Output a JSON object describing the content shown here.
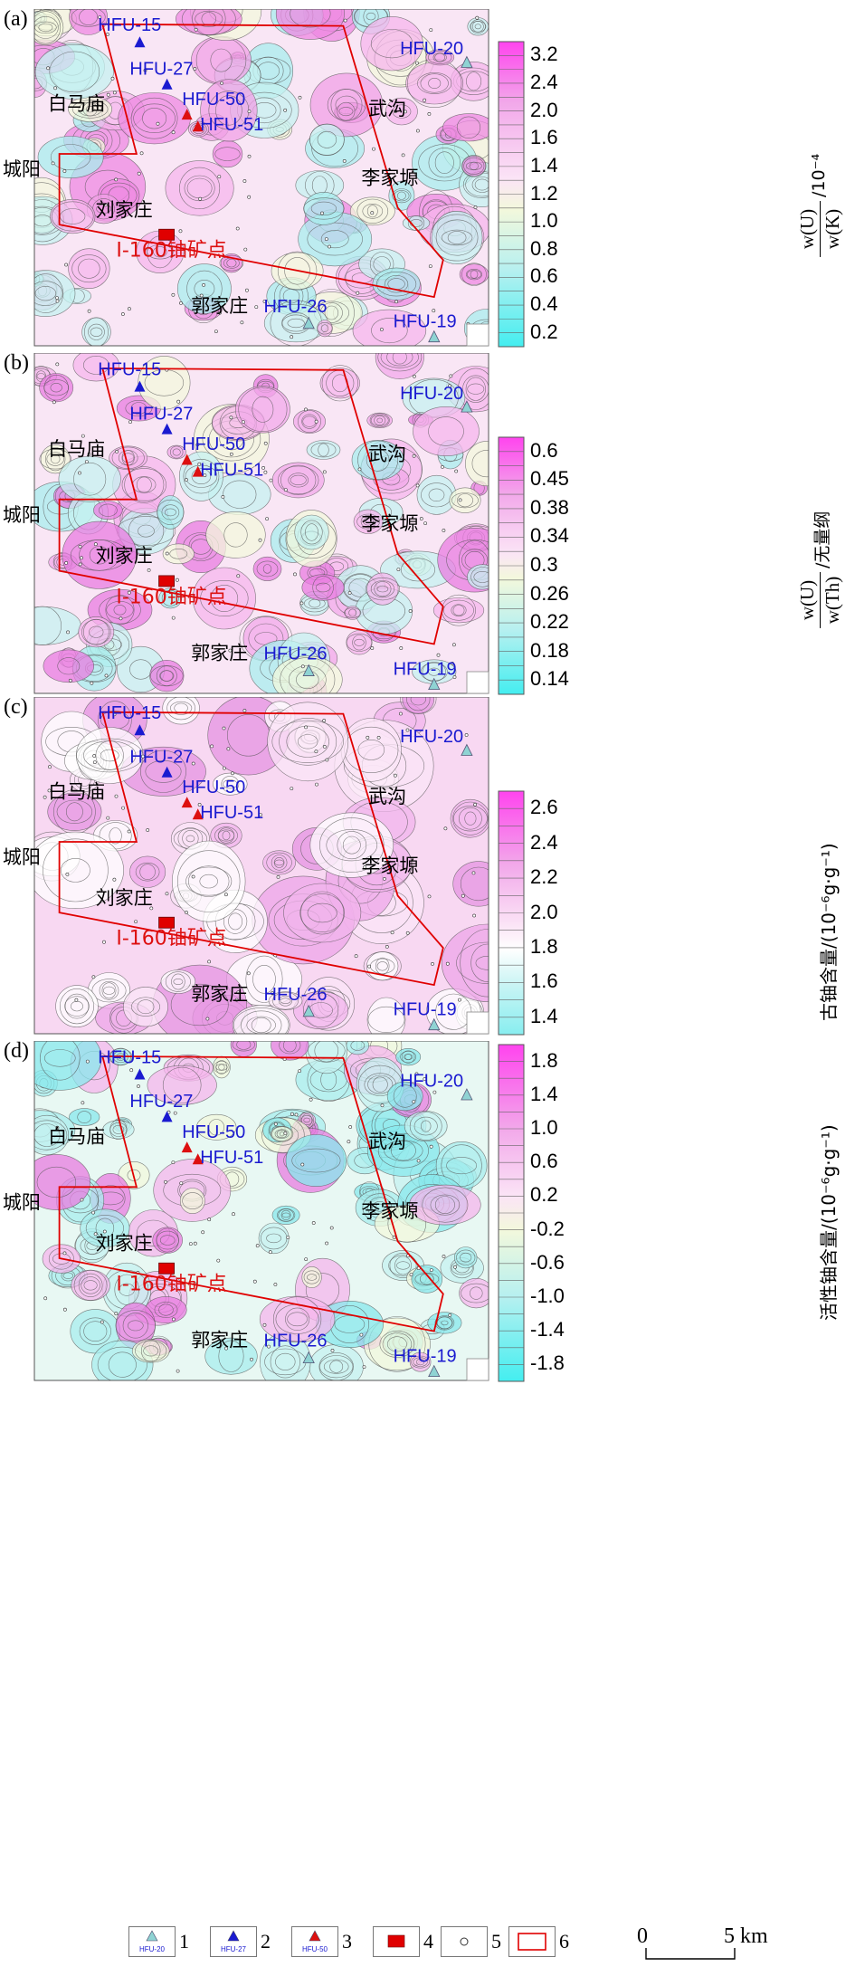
{
  "panels": [
    {
      "id": "a",
      "label": "(a)",
      "colorbar": {
        "ticks": [
          "3.2",
          "2.4",
          "2.0",
          "1.6",
          "1.4",
          "1.2",
          "1.0",
          "0.8",
          "0.6",
          "0.4",
          "0.2"
        ],
        "title_type": "fraction",
        "numerator": "w(U)",
        "denominator": "w(K)",
        "suffix": "/10⁻⁴"
      }
    },
    {
      "id": "b",
      "label": "(b)",
      "colorbar": {
        "ticks": [
          "0.6",
          "0.45",
          "0.38",
          "0.34",
          "0.3",
          "0.26",
          "0.22",
          "0.18",
          "0.14"
        ],
        "title_type": "fraction",
        "numerator": "w(U)",
        "denominator": "w(Th)",
        "suffix": "/无量纲"
      }
    },
    {
      "id": "c",
      "label": "(c)",
      "colorbar": {
        "ticks": [
          "2.6",
          "2.4",
          "2.2",
          "2.0",
          "1.8",
          "1.6",
          "1.4"
        ],
        "title_type": "text",
        "title": "古铀含量/(10⁻⁶g·g⁻¹)"
      }
    },
    {
      "id": "d",
      "label": "(d)",
      "colorbar": {
        "ticks": [
          "1.8",
          "1.4",
          "1.0",
          "0.6",
          "0.2",
          "-0.2",
          "-0.6",
          "-1.0",
          "-1.4",
          "-1.8"
        ],
        "title_type": "text",
        "title": "活性铀含量/(10⁻⁶g·g⁻¹)"
      }
    }
  ],
  "places": {
    "baimamiao": "白马庙",
    "chengyang": "城阳",
    "wugou": "武沟",
    "lijiayuan": "李家塬",
    "liujiazhuang": "刘家庄",
    "guojiazhuang": "郭家庄",
    "deposit": "I-160铀矿点"
  },
  "wells": {
    "hfu15": "HFU-15",
    "hfu27": "HFU-27",
    "hfu50": "HFU-50",
    "hfu51": "HFU-51",
    "hfu20": "HFU-20",
    "hfu26": "HFU-26",
    "hfu19": "HFU-19"
  },
  "legend": {
    "items": [
      {
        "num": "1",
        "sample": "HFU-20",
        "icon": "cyan-triangle"
      },
      {
        "num": "2",
        "sample": "HFU-27",
        "icon": "blue-triangle"
      },
      {
        "num": "3",
        "sample": "HFU-50",
        "icon": "red-triangle"
      },
      {
        "num": "4",
        "sample": "",
        "icon": "deposit-symbol"
      },
      {
        "num": "5",
        "sample": "",
        "icon": "circle-point"
      },
      {
        "num": "6",
        "sample": "",
        "icon": "red-rectangle-outline"
      }
    ]
  },
  "scale": {
    "zero": "0",
    "five": "5 km"
  },
  "colors": {
    "magenta": "#ff33ee",
    "pink_light": "#f6c8f0",
    "cyan": "#44eef0",
    "cyan_light": "#c8f4f4",
    "yellow_pale": "#f1f7d8",
    "well_blue": "#1a1ad0",
    "well_red": "#dd1010",
    "outline_red": "#e00000"
  }
}
